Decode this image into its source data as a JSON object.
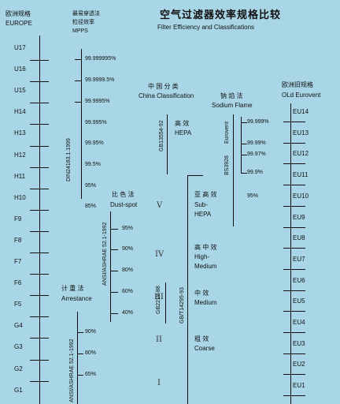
{
  "header": {
    "title_cn": "空气过滤器效率规格比较",
    "title_en": "Filter Efficiency and Classifications"
  },
  "europe": {
    "label_cn": "欧洲规格",
    "label_en": "EUROPE",
    "classes": [
      "U17",
      "U16",
      "U15",
      "H14",
      "H13",
      "H12",
      "H11",
      "H10",
      "F9",
      "F8",
      "F7",
      "F6",
      "F5",
      "G4",
      "G3",
      "G2",
      "G1"
    ]
  },
  "mpps": {
    "label_line1": "最易穿透法",
    "label_line2": "粒径效率",
    "label_en": "MPPS",
    "values": [
      "99.999995%",
      "99.9999.5%",
      "99.9995%",
      "99.995%",
      "99.95%",
      "99.5%",
      "95%",
      "85%"
    ],
    "standard": "DIN24183.1.1999"
  },
  "arrestance": {
    "label_cn": "计 重 法",
    "label_en": "Arrestance",
    "values": [
      "90%",
      "80%",
      "65%"
    ],
    "standard": "ANSI/ASHRAE 52.1-1992"
  },
  "dustspot": {
    "label_cn": "比 色 法",
    "label_en": "Dust-spot",
    "values": [
      "95%",
      "90%",
      "80%",
      "60%",
      "40%"
    ],
    "standard": "ANSI/ASHRAE 52.1-1992"
  },
  "china": {
    "label_cn": "中 国 分 类",
    "label_en": "China Classification",
    "std_hepa": "GB13554-92",
    "std_main": "GB/T14295-93",
    "std_small": "GB2218-88",
    "cat_hepa_cn": "高 效",
    "cat_hepa_en": "HEPA",
    "cat_sub_cn": "亚 高 效",
    "cat_sub_en1": "Sub-",
    "cat_sub_en2": "HEPA",
    "cat_high_cn": "高 中 效",
    "cat_high_en1": "High-",
    "cat_high_en2": "Medium",
    "cat_med_cn": "中 效",
    "cat_med_en": "Medium",
    "cat_coarse_cn": "粗 效",
    "cat_coarse_en": "Coarse",
    "roman": [
      "V",
      "IV",
      "III",
      "II",
      "I"
    ]
  },
  "sodium": {
    "label_cn": "钠 焰 法",
    "label_en": "Sodium Flame",
    "std1": "BS3928",
    "std2": "Eurovent",
    "values": [
      "99.999%",
      "99.99%",
      "99.97%",
      "99.9%",
      "95%"
    ]
  },
  "eurovent": {
    "label_cn": "欧洲旧规格",
    "label_en": "OLd Eurovent",
    "classes": [
      "EU14",
      "EU13",
      "EU12",
      "EU11",
      "EU10",
      "EU9",
      "EU8",
      "EU7",
      "EU6",
      "EU5",
      "EU4",
      "EU3",
      "EU2",
      "EU1"
    ]
  }
}
